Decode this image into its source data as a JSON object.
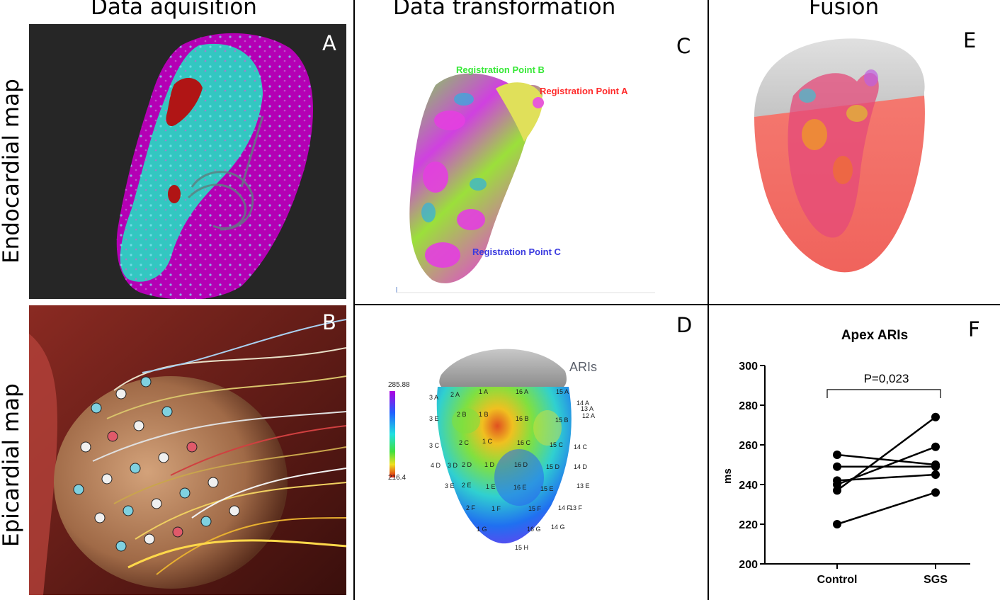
{
  "columns": {
    "acquisition": "Data aquisition",
    "transformation": "Data transformation",
    "fusion": "Fusion"
  },
  "rows": {
    "endocardial": "Endocardial map",
    "epicardial": "Epicardial map"
  },
  "panels": {
    "a": "A",
    "b": "B",
    "c": "C",
    "d": "D",
    "e": "E",
    "f": "F"
  },
  "registration": {
    "point_a": "Registration Point A",
    "point_b": "Registration Point B",
    "point_c": "Registration Point C"
  },
  "ari_map": {
    "title": "ARIs",
    "scale_max": "285.88",
    "scale_min": "216.4",
    "electrode_labels": [
      "3 A",
      "2 A",
      "1 A",
      "16 A",
      "15 A",
      "14 A",
      "13 A",
      "12 A",
      "3 E",
      "2 B",
      "1 B",
      "16 B",
      "15 B",
      "3 C",
      "2 C",
      "1 C",
      "16 C",
      "15 C",
      "14 C",
      "4 D",
      "3 D",
      "2 D",
      "1 D",
      "16 D",
      "15 D",
      "14 D",
      "3 E",
      "2 E",
      "1 E",
      "16 E",
      "15 E",
      "13 E",
      "2 F",
      "1 F",
      "15 F",
      "14 F",
      "13 F",
      "1 G",
      "16 G",
      "14 G",
      "15 H"
    ]
  },
  "chart_data": {
    "type": "line",
    "title": "Apex ARIs",
    "xlabel": "",
    "ylabel": "ms",
    "categories": [
      "Control",
      "SGS"
    ],
    "ylim": [
      200,
      300
    ],
    "yticks": [
      200,
      220,
      240,
      260,
      280,
      300
    ],
    "annotation": "P=0,023",
    "series": [
      {
        "values": [
          255,
          250
        ]
      },
      {
        "values": [
          249,
          249
        ]
      },
      {
        "values": [
          242,
          245
        ]
      },
      {
        "values": [
          240,
          259
        ]
      },
      {
        "values": [
          237,
          274
        ]
      },
      {
        "values": [
          220,
          236
        ]
      }
    ],
    "colors": {
      "line": "#000000",
      "point": "#000000"
    }
  },
  "colors": {
    "endo_background": "#262626",
    "endo_magenta": "#b400b4",
    "endo_cyan": "#33c7c1",
    "endo_red": "#b01515",
    "reg_point_a": "#ff2b2b",
    "reg_point_b": "#37e837",
    "reg_point_c": "#3a3adf",
    "fusion_red": "#f5736c",
    "fusion_grey": "#d2d2d2",
    "ari_grey": "#9a9a9a"
  }
}
